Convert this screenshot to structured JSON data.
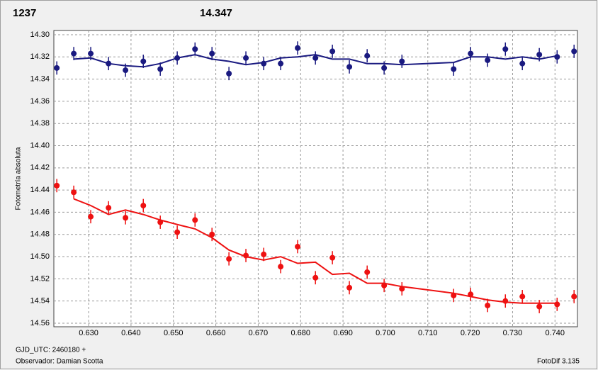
{
  "chart_data": {
    "type": "scatter",
    "y_label": "Fotometría absoluta",
    "footer_left_1": "GJD_UTC: 2460180 +",
    "footer_left_2": "Observador: Damian Scotta",
    "footer_right": "FotoDif 3.135",
    "xlim": [
      0.6218,
      0.7453
    ],
    "ylim": [
      14.2962,
      14.5632
    ],
    "y_inverted": true,
    "grid": true,
    "xticks": [
      {
        "value": 0.63,
        "label": "0.630"
      },
      {
        "value": 0.64,
        "label": "0.640"
      },
      {
        "value": 0.65,
        "label": "0.650"
      },
      {
        "value": 0.66,
        "label": "0.660"
      },
      {
        "value": 0.67,
        "label": "0.670"
      },
      {
        "value": 0.68,
        "label": "0.680"
      },
      {
        "value": 0.69,
        "label": "0.690"
      },
      {
        "value": 0.7,
        "label": "0.700"
      },
      {
        "value": 0.71,
        "label": "0.710"
      },
      {
        "value": 0.72,
        "label": "0.720"
      },
      {
        "value": 0.73,
        "label": "0.730"
      },
      {
        "value": 0.74,
        "label": "0.740"
      }
    ],
    "yticks": [
      {
        "value": 14.3,
        "label": "14.30"
      },
      14.32,
      14.34,
      14.36,
      14.38,
      {
        "value": 14.4,
        "label": "14.40"
      },
      14.42,
      14.44,
      14.46,
      14.48,
      {
        "value": 14.5,
        "label": "14.50"
      },
      14.52,
      14.54,
      14.56
    ],
    "x": [
      0.6225,
      0.6265,
      0.6305,
      0.6347,
      0.6387,
      0.6429,
      0.6469,
      0.6509,
      0.6551,
      0.6591,
      0.6631,
      0.6671,
      0.6713,
      0.6753,
      0.6793,
      0.6835,
      0.6875,
      0.6915,
      0.6957,
      0.6997,
      0.7039,
      0.7161,
      0.7201,
      0.7241,
      0.7283,
      0.7323,
      0.7363,
      0.7405,
      0.7445
    ],
    "series": [
      {
        "name": "1237",
        "color": "#ee1111",
        "error": 0.006,
        "values": [
          14.436,
          14.442,
          14.464,
          14.456,
          14.465,
          14.454,
          14.469,
          14.478,
          14.467,
          14.48,
          14.502,
          14.499,
          14.498,
          14.509,
          14.491,
          14.519,
          14.501,
          14.528,
          14.514,
          14.526,
          14.529,
          14.535,
          14.534,
          14.544,
          14.54,
          14.536,
          14.545,
          14.543,
          14.536
        ],
        "fit": [
          null,
          14.448,
          14.454,
          14.462,
          14.458,
          14.462,
          14.467,
          14.471,
          14.475,
          14.483,
          14.494,
          14.5,
          14.503,
          14.5,
          14.506,
          14.505,
          14.516,
          14.515,
          14.524,
          14.524,
          14.527,
          14.533,
          14.536,
          14.539,
          14.541,
          14.542,
          14.542,
          14.542,
          null
        ]
      },
      {
        "name": "14.347",
        "color": "#1a1a80",
        "error": 0.006,
        "values": [
          14.33,
          14.317,
          14.317,
          14.326,
          14.332,
          14.324,
          14.331,
          14.321,
          14.313,
          14.317,
          14.335,
          14.321,
          14.326,
          14.326,
          14.312,
          14.321,
          14.315,
          14.329,
          14.319,
          14.33,
          14.324,
          14.331,
          14.317,
          14.323,
          14.313,
          14.326,
          14.318,
          14.32,
          14.315
        ],
        "fit": [
          null,
          14.322,
          14.321,
          14.326,
          14.328,
          14.329,
          14.326,
          14.321,
          14.318,
          14.322,
          14.324,
          14.327,
          14.325,
          14.321,
          14.32,
          14.318,
          14.322,
          14.322,
          14.326,
          14.326,
          14.327,
          14.325,
          14.32,
          14.32,
          14.322,
          14.32,
          14.322,
          14.319,
          null
        ]
      }
    ]
  }
}
